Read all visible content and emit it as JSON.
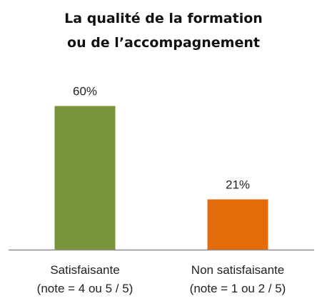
{
  "chart_data": {
    "type": "bar",
    "title": [
      "La qualité de la formation",
      "ou de l’accompagnement"
    ],
    "categories": [
      {
        "line1": "Satisfaisante",
        "line2": "(note = 4 ou 5 / 5)"
      },
      {
        "line1": "Non satisfaisante",
        "line2": "(note = 1 ou 2 / 5)"
      }
    ],
    "values": [
      60,
      21
    ],
    "data_labels": [
      "60%",
      "21%"
    ],
    "bar_colors": [
      "#77963c",
      "#e46c0a"
    ],
    "ylim": [
      0,
      70
    ],
    "grid": false,
    "legend": "none",
    "axis_color": "#8c8c8c"
  }
}
